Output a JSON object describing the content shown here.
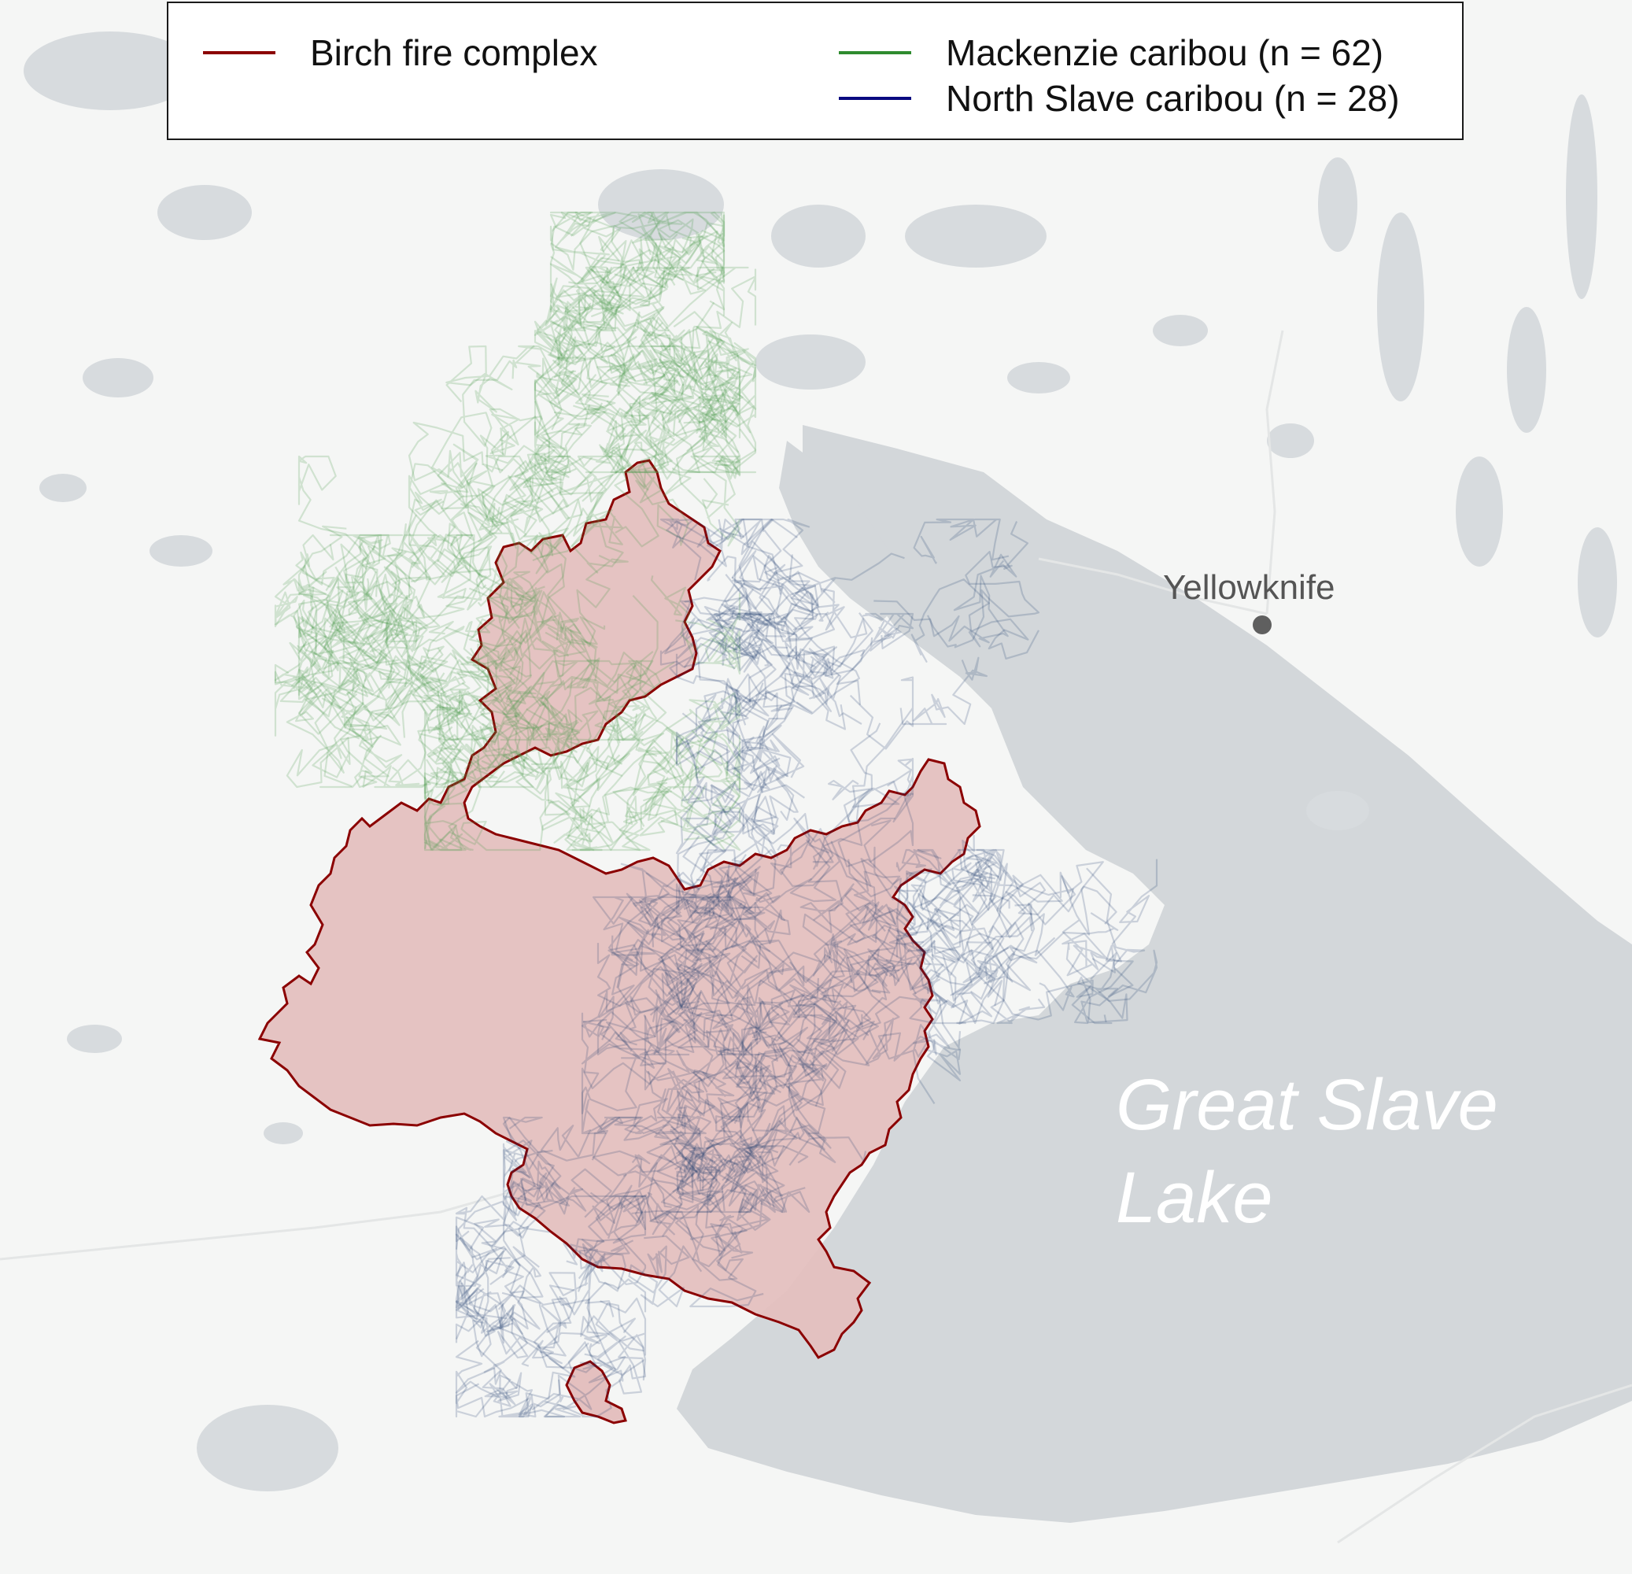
{
  "legend": {
    "fire": {
      "label": "Birch fire complex",
      "color": "#8b0000"
    },
    "mackenzie": {
      "label": "Mackenzie caribou (n = 62)",
      "color": "#2e8b2e"
    },
    "north_slave": {
      "label": "North Slave caribou (n = 28)",
      "color": "#0a0a80"
    }
  },
  "places": {
    "city": "Yellowknife",
    "lake_line1": "Great Slave",
    "lake_line2": "Lake"
  },
  "colors": {
    "land": "#f5f6f5",
    "water": "#d3d7da",
    "fire_fill": "#e4c0bf",
    "fire_outline": "#8b0000",
    "mackenzie_track": "#4f9a4f",
    "north_slave_track": "#1e3c6e"
  }
}
